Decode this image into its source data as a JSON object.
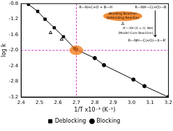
{
  "chart_data": {
    "type": "scatter",
    "x_label": "1/T x10⁻³ (K⁻¹)",
    "y_label": "log k",
    "xlim": [
      2.4,
      3.2
    ],
    "xticks": [
      2.4,
      2.5,
      2.6,
      2.7,
      2.8,
      2.9,
      {
        "value": 3,
        "label": "3.0"
      },
      3.1,
      3.2
    ],
    "ylim": [
      -3.2,
      -0.8
    ],
    "yticks": [
      -3.2,
      -2.8,
      -2.4,
      {
        "value": -2,
        "label": "-2.0"
      },
      -1.6,
      -1.2,
      -0.8
    ],
    "grid": false,
    "legend": "bottom",
    "series": [
      {
        "name": "Deblocking",
        "color": "#000000",
        "marker": "square",
        "line_style": "solid",
        "x": [
          2.44,
          2.49,
          2.53,
          2.58,
          2.63,
          2.69
        ],
        "values": [
          -0.82,
          -1.0,
          -1.2,
          -1.42,
          -1.65,
          -1.95
        ]
      },
      {
        "name": "Blocking",
        "color": "#000000",
        "marker": "circle",
        "line_style": "solid",
        "x": [
          2.7,
          2.8,
          2.85,
          3.01,
          3.07,
          3.2
        ],
        "values": [
          -1.98,
          -2.2,
          -2.38,
          -2.75,
          -2.92,
          -3.2
        ]
      },
      {
        "color": "#000000",
        "marker": "triangle",
        "line_style": "none",
        "x": [
          2.56,
          2.62
        ],
        "values": [
          -1.55,
          -1.72
        ]
      }
    ],
    "crossover": {
      "x": 2.7,
      "y": -2.0
    },
    "scheme": {
      "reactants": "R—N=C=O + B—H",
      "product": "R—NH—C(=O)—B",
      "forward": "Blocking Reaction",
      "reverse": "Deblocking Reaction",
      "heat": "Δ",
      "reagent": "R'—XH (X = O, NH)",
      "reagent_note": "(Model Cure Reaction)",
      "cure_product": "R—NH—C(=O)—X—R'"
    }
  }
}
